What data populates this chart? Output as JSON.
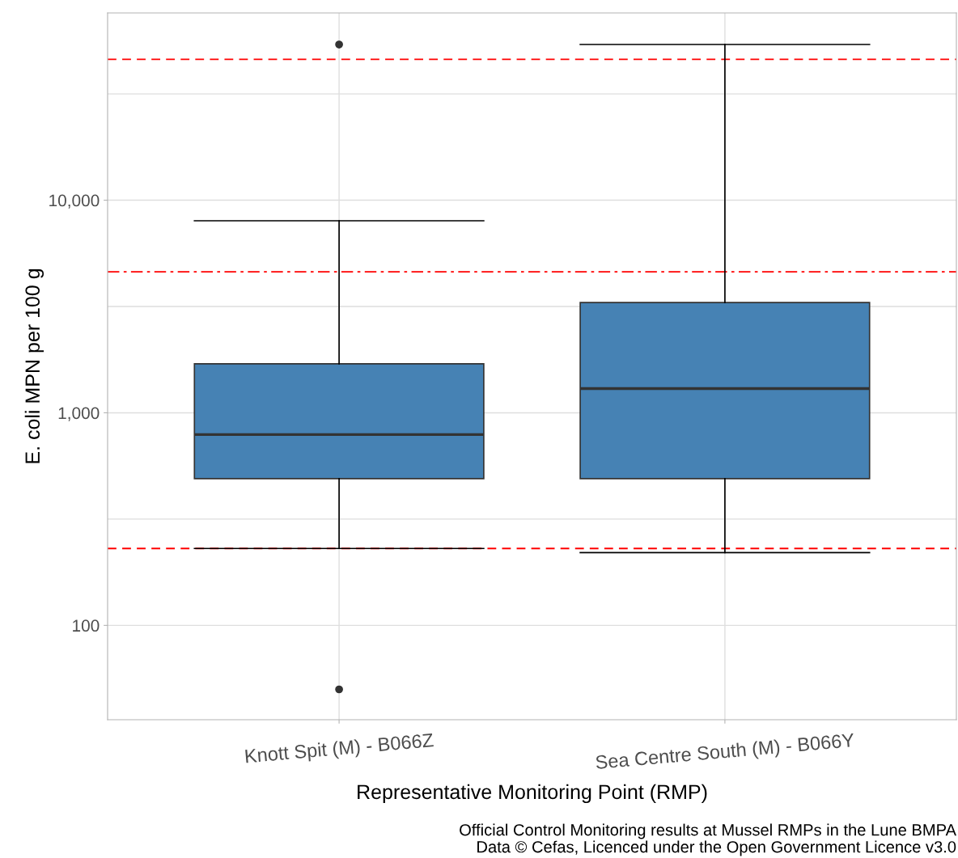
{
  "chart_data": {
    "type": "box",
    "xlabel": "Representative Monitoring Point (RMP)",
    "ylabel": "E. coli MPN per 100 g",
    "categories": [
      "Knott Spit (M) - B066Z",
      "Sea Centre South (M) - B066Y"
    ],
    "boxes": [
      {
        "low": 230,
        "q1": 490,
        "median": 790,
        "q3": 1700,
        "high": 8000,
        "outliers": [
          54000,
          50
        ]
      },
      {
        "low": 220,
        "q1": 490,
        "median": 1300,
        "q3": 3300,
        "high": 54000
      }
    ],
    "color": "#4682b4",
    "log": true,
    "ylim": [
      36,
      76000
    ],
    "yticks": [
      {
        "value": 100,
        "label": "100"
      },
      {
        "value": 316.2,
        "label": null
      },
      {
        "value": 1000,
        "label": "1,000"
      },
      {
        "value": 3162,
        "label": null
      },
      {
        "value": 10000,
        "label": "10,000"
      },
      {
        "value": 31620,
        "label": null
      }
    ],
    "grid": true,
    "ref_lines": [
      {
        "axis": "y",
        "value": 46000,
        "color": "#ff0000",
        "line_style": "dashed"
      },
      {
        "axis": "y",
        "value": 4600,
        "color": "#ff0000",
        "line_style": "dashdot"
      },
      {
        "axis": "y",
        "value": 230,
        "color": "#ff0000",
        "line_style": "dashed"
      }
    ],
    "annotations": [
      "Official Control Monitoring results at Mussel RMPs in the Lune BMPA",
      "Data © Cefas, Licenced under the Open Government Licence v3.0"
    ]
  }
}
